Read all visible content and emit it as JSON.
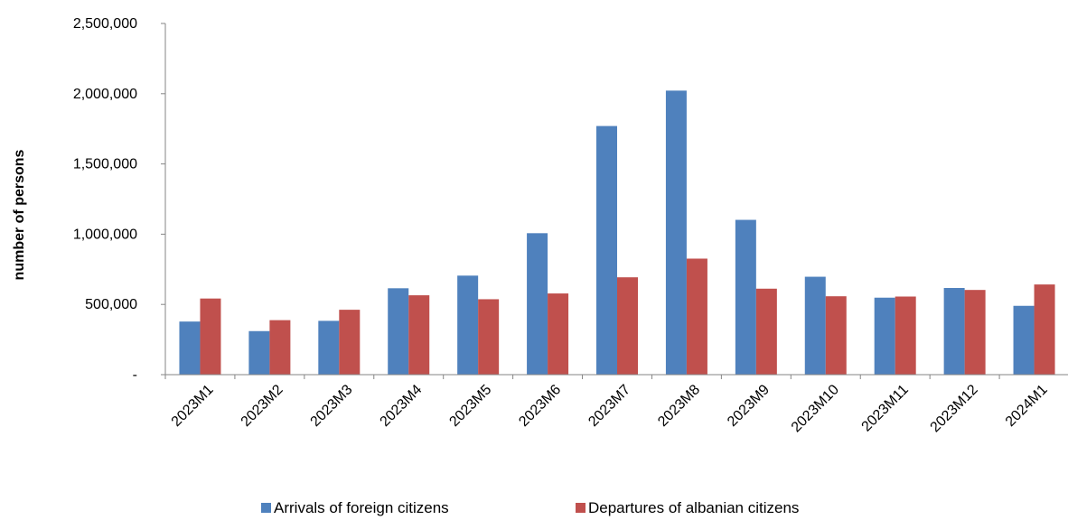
{
  "chart_data": {
    "type": "bar",
    "ylabel": "number of persons",
    "xlabel": "",
    "ylim": [
      0,
      2500000
    ],
    "yticks": [
      0,
      500000,
      1000000,
      1500000,
      2000000,
      2500000
    ],
    "ytick_labels": [
      "-",
      "500,000",
      "1,000,000",
      "1,500,000",
      "2,000,000",
      "2,500,000"
    ],
    "categories": [
      "2023M1",
      "2023M2",
      "2023M3",
      "2023M4",
      "2023M5",
      "2023M6",
      "2023M7",
      "2023M8",
      "2023M9",
      "2023M10",
      "2023M11",
      "2023M12",
      "2024M1"
    ],
    "series": [
      {
        "name": "Arrivals of foreign citizens",
        "color": "#4F81BD",
        "values": [
          378000,
          310000,
          383000,
          615000,
          705000,
          1007000,
          1770000,
          2022000,
          1102000,
          697000,
          548000,
          617000,
          490000
        ]
      },
      {
        "name": "Departures of albanian citizens",
        "color": "#C0504D",
        "values": [
          542000,
          388000,
          462000,
          565000,
          537000,
          578000,
          693000,
          826000,
          612000,
          558000,
          556000,
          603000,
          642000
        ]
      }
    ],
    "grid": false,
    "legend_position": "bottom"
  }
}
